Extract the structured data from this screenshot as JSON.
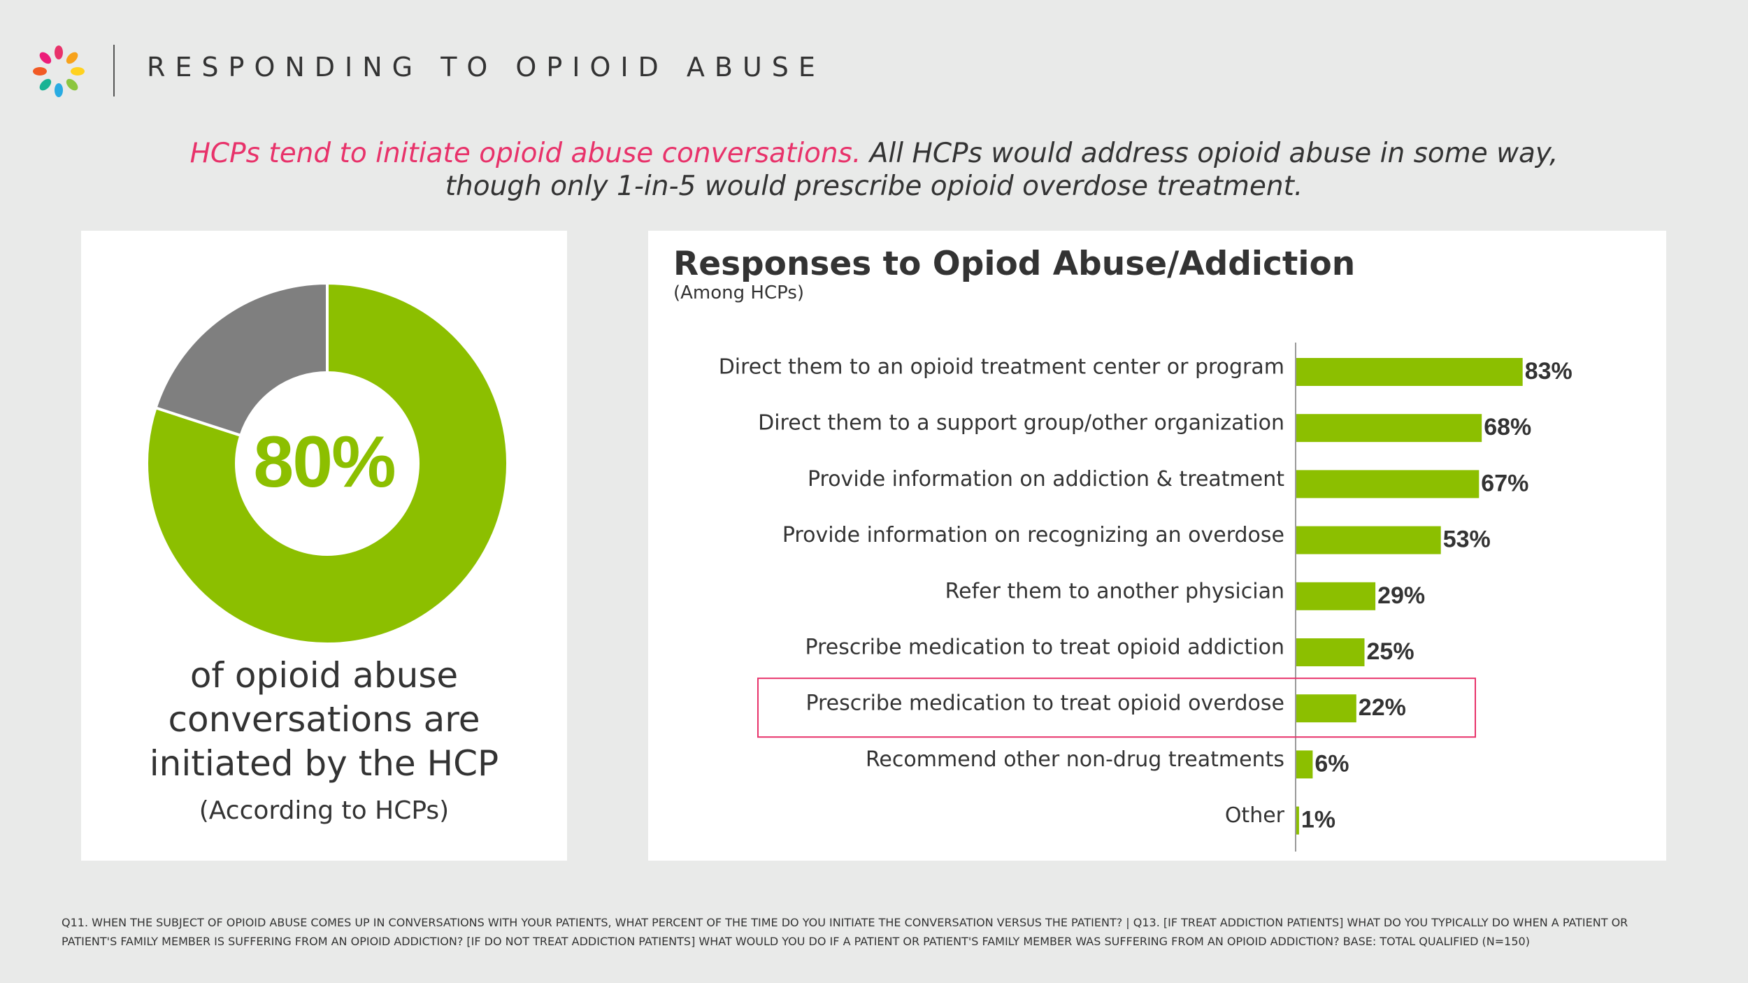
{
  "header": {
    "title": "RESPONDING TO OPIOID ABUSE",
    "logo_icon": "flower-burst-icon"
  },
  "headline": {
    "accent": "HCPs tend to initiate opioid abuse conversations.",
    "rest_line1": " All HCPs would address opioid abuse in some way,",
    "line2": "though only 1-in-5 would prescribe opioid overdose treatment."
  },
  "donut": {
    "value_label": "80%",
    "value": 80,
    "caption": "of opioid abuse conversations are initiated by the HCP",
    "note": "(According to HCPs)"
  },
  "chart_data": [
    {
      "type": "pie",
      "labels": [
        "",
        ""
      ],
      "values": [
        80,
        20
      ],
      "colors": [
        "#8cbf00",
        "#7f7f7f"
      ]
    },
    {
      "type": "bar",
      "orientation": "horizontal",
      "title": "Responses to Opiod Abuse/Addiction",
      "subtitle": "(Among HCPs)",
      "categories": [
        "Direct them to an opioid treatment center or program",
        "Direct them to a support group/other organization",
        "Provide information on addiction & treatment",
        "Provide information on recognizing an overdose",
        "Refer them to another physician",
        "Prescribe medication to treat opioid addiction",
        "Prescribe medication to treat opioid overdose",
        "Recommend other non-drug treatments",
        "Other"
      ],
      "values": [
        83,
        68,
        67,
        53,
        29,
        25,
        22,
        6,
        1
      ],
      "value_labels": [
        "83%",
        "68%",
        "67%",
        "53%",
        "29%",
        "25%",
        "22%",
        "6%",
        "1%"
      ],
      "highlighted_index": 6,
      "xlim": [
        0,
        100
      ],
      "bar_color": "#8cbf00",
      "highlight_color": "#e8326a",
      "legend": "none",
      "grid": false
    }
  ],
  "footnote": "Q11. WHEN THE SUBJECT OF OPIOID ABUSE COMES UP IN CONVERSATIONS WITH YOUR PATIENTS, WHAT PERCENT OF THE TIME DO YOU INITIATE THE CONVERSATION VERSUS THE PATIENT? | Q13. [IF TREAT ADDICTION PATIENTS] WHAT DO YOU TYPICALLY DO WHEN A PATIENT OR PATIENT'S FAMILY MEMBER IS SUFFERING FROM AN OPIOID ADDICTION? [IF DO NOT TREAT ADDICTION PATIENTS] WHAT WOULD YOU DO IF A PATIENT OR PATIENT'S FAMILY MEMBER WAS SUFFERING FROM AN OPIOID ADDICTION? BASE: TOTAL QUALIFIED (N=150)"
}
